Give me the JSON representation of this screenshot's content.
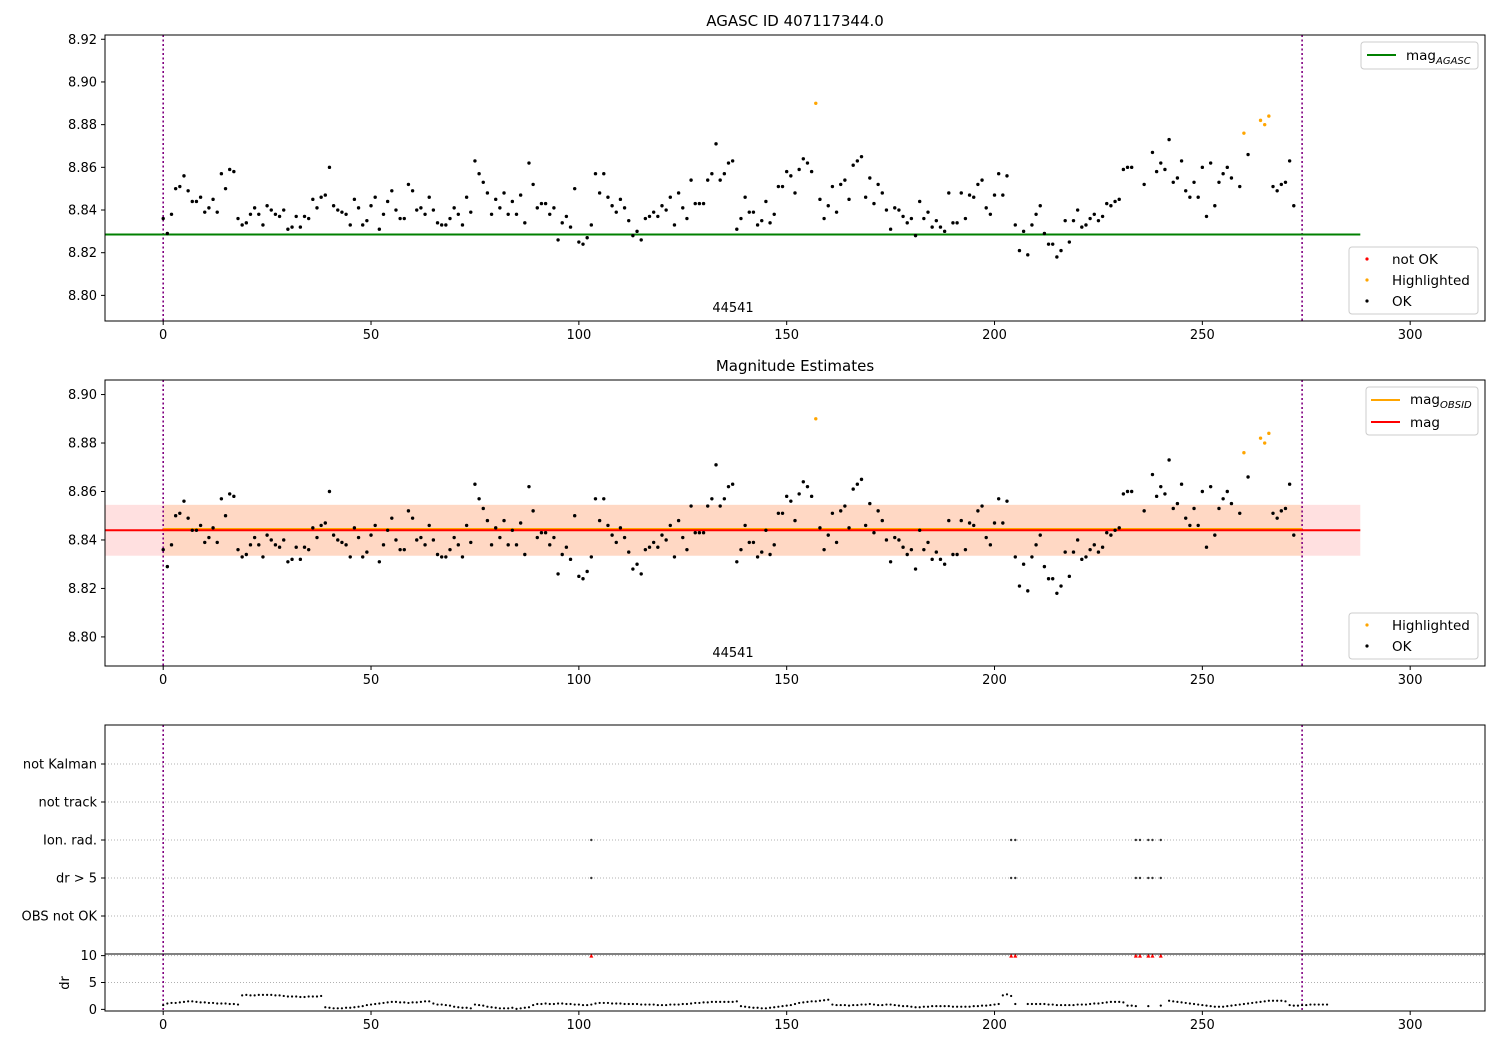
{
  "chart_data": [
    {
      "type": "scatter",
      "title": "AGASC ID 407117344.0",
      "obsid_label": "44541",
      "xlim": [
        -14,
        318
      ],
      "ylim": [
        8.788,
        8.922
      ],
      "x_ticks": [
        0,
        50,
        100,
        150,
        200,
        250,
        300
      ],
      "y_ticks": [
        8.8,
        8.82,
        8.84,
        8.86,
        8.88,
        8.9,
        8.92
      ],
      "obsid_boundaries": [
        0,
        274
      ],
      "reference_lines": [
        {
          "name": "mag_AGASC",
          "label_main": "mag",
          "label_sub": "AGASC",
          "value": 8.8285,
          "x_range": [
            -14,
            288
          ],
          "color": "#008000"
        }
      ],
      "legend_top": [
        "mag_AGASC"
      ],
      "legend_bottom": [
        {
          "label": "not OK",
          "color": "#ff0000"
        },
        {
          "label": "Highlighted",
          "color": "#ffa500"
        },
        {
          "label": "OK",
          "color": "#000000"
        }
      ],
      "highlighted_points": [
        [
          157,
          8.89
        ],
        [
          260,
          8.876
        ],
        [
          264,
          8.882
        ],
        [
          265,
          8.88
        ],
        [
          266,
          8.884
        ]
      ],
      "ok_points_start": 0,
      "ok_points": [
        8.836,
        8.829,
        8.838,
        8.85,
        8.851,
        8.856,
        8.849,
        8.844,
        8.844,
        8.846,
        8.839,
        8.841,
        8.845,
        8.839,
        8.857,
        8.85,
        8.859,
        8.858,
        8.836,
        8.833,
        8.834,
        8.838,
        8.841,
        8.838,
        8.833,
        8.842,
        8.84,
        8.838,
        8.837,
        8.84,
        8.831,
        8.832,
        8.837,
        8.832,
        8.837,
        8.836,
        8.845,
        8.841,
        8.846,
        8.847,
        8.86,
        8.842,
        8.84,
        8.839,
        8.838,
        8.833,
        8.845,
        8.841,
        8.833,
        8.835,
        8.842,
        8.846,
        8.831,
        8.838,
        8.844,
        8.849,
        8.84,
        8.836,
        8.836,
        8.852,
        8.849,
        8.84,
        8.841,
        8.838,
        8.846,
        8.84,
        8.834,
        8.833,
        8.833,
        8.836,
        8.841,
        8.838,
        8.833,
        8.846,
        8.839,
        8.863,
        8.857,
        8.853,
        8.848,
        8.838,
        8.845,
        8.841,
        8.848,
        8.838,
        8.844,
        8.838,
        8.847,
        8.834,
        8.862,
        8.852,
        8.841,
        8.843,
        8.843,
        8.838,
        8.841,
        8.826,
        8.834,
        8.837,
        8.832,
        8.85,
        8.825,
        8.824,
        8.827,
        8.833,
        8.857,
        8.848,
        8.857,
        8.846,
        8.842,
        8.839,
        8.845,
        8.841,
        8.835,
        8.828,
        8.83,
        8.826,
        8.836,
        8.837,
        8.839,
        8.837,
        8.842,
        8.84,
        8.846,
        8.833,
        8.848,
        8.841,
        8.836,
        8.854,
        8.843,
        8.843,
        8.843,
        8.854,
        8.857,
        8.871,
        8.854,
        8.857,
        8.862,
        8.863,
        8.831,
        8.836,
        8.846,
        8.839,
        8.839,
        8.833,
        8.835,
        8.844,
        8.834,
        8.838,
        8.851,
        8.851,
        8.858,
        8.856,
        8.848,
        8.859,
        8.864,
        8.862,
        8.858,
        8.89,
        8.845,
        8.836,
        8.842,
        8.851,
        8.839,
        8.852,
        8.854,
        8.845,
        8.861,
        8.863,
        8.865,
        8.846,
        8.855,
        8.843,
        8.852,
        8.848,
        8.84,
        8.831,
        8.841,
        8.84,
        8.837,
        8.834,
        8.836,
        8.828,
        8.844,
        8.836,
        8.839,
        8.832,
        8.835,
        8.832,
        8.83,
        8.848,
        8.834,
        8.834,
        8.848,
        8.836,
        8.847,
        8.846,
        8.852,
        8.854,
        8.841,
        8.838,
        8.847,
        8.857,
        8.847,
        8.856,
        null,
        8.833,
        8.821,
        8.83,
        8.819,
        8.833,
        8.838,
        8.842,
        8.829,
        8.824,
        8.824,
        8.818,
        8.821,
        8.835,
        8.825,
        8.835,
        8.84,
        8.832,
        8.833,
        8.836,
        8.838,
        8.835,
        8.837,
        8.843,
        8.842,
        8.844,
        8.845,
        8.859,
        8.86,
        8.86,
        null,
        null,
        8.852,
        null,
        8.867,
        8.858,
        8.862,
        8.859,
        8.873,
        8.853,
        8.855,
        8.863,
        8.849,
        8.846,
        8.853,
        8.846,
        8.86,
        8.837,
        8.862,
        8.842,
        8.853,
        8.857,
        8.86,
        8.855,
        null,
        8.851,
        8.851,
        8.866,
        null,
        null,
        null,
        8.852,
        8.853,
        8.851,
        8.849,
        8.852,
        8.853,
        8.863,
        8.842
      ]
    },
    {
      "type": "scatter",
      "title": "Magnitude Estimates",
      "obsid_label": "44541",
      "xlim": [
        -14,
        318
      ],
      "ylim": [
        8.788,
        8.906
      ],
      "x_ticks": [
        0,
        50,
        100,
        150,
        200,
        250,
        300
      ],
      "y_ticks": [
        8.8,
        8.82,
        8.84,
        8.86,
        8.88,
        8.9
      ],
      "obsid_boundaries": [
        0,
        274
      ],
      "reference_lines": [
        {
          "name": "mag_OBSID",
          "label_main": "mag",
          "label_sub": "OBSID",
          "value": 8.8445,
          "x_range": [
            0,
            274
          ],
          "color": "#ffa500"
        },
        {
          "name": "mag",
          "label_main": "mag",
          "label_sub": "",
          "value": 8.844,
          "x_range": [
            -14,
            288
          ],
          "color": "#ff0000"
        }
      ],
      "bands": [
        {
          "name": "mag",
          "range": [
            8.8335,
            8.8545
          ],
          "x_range": [
            -14,
            288
          ],
          "color": "#ff0000"
        },
        {
          "name": "mag_OBSID",
          "range": [
            8.8335,
            8.8545
          ],
          "x_range": [
            0,
            274
          ],
          "color": "#ffa500"
        }
      ],
      "legend_top": [
        "mag_OBSID",
        "mag"
      ],
      "legend_bottom": [
        {
          "label": "Highlighted",
          "color": "#ffa500"
        },
        {
          "label": "OK",
          "color": "#000000"
        }
      ],
      "highlighted_points": [
        [
          157,
          8.89
        ],
        [
          260,
          8.876
        ],
        [
          264,
          8.882
        ],
        [
          265,
          8.88
        ],
        [
          266,
          8.884
        ]
      ],
      "ok_points_ref": 0
    },
    {
      "type": "scatter",
      "title": "",
      "xlim": [
        -14,
        318
      ],
      "categories": [
        "OBS not OK",
        "dr > 5",
        "Ion. rad.",
        "not track",
        "not Kalman"
      ],
      "flag_points": {
        "dr > 5": [
          103,
          204,
          205,
          234,
          235,
          237,
          238,
          240
        ],
        "Ion. rad.": [
          103,
          204,
          205,
          234,
          235,
          237,
          238,
          240
        ]
      },
      "obsid_boundaries": [
        0,
        274
      ]
    },
    {
      "type": "scatter",
      "title": "",
      "ylabel": "dr",
      "xlim": [
        -14,
        318
      ],
      "ylim": [
        -0.3,
        10.3
      ],
      "x_ticks": [
        0,
        50,
        100,
        150,
        200,
        250,
        300
      ],
      "y_ticks": [
        0,
        5,
        10
      ],
      "obsid_boundaries": [
        0,
        274
      ],
      "clipped_points": [
        103,
        204,
        205,
        234,
        235,
        237,
        238,
        240
      ],
      "dr_values_start": 0,
      "dr_values": [
        0.8,
        1.1,
        1.2,
        1.2,
        1.3,
        1.4,
        1.5,
        1.5,
        1.4,
        1.3,
        1.3,
        1.2,
        1.2,
        1.1,
        1.1,
        1.1,
        1.0,
        1.0,
        0.9,
        2.6,
        2.7,
        2.6,
        2.6,
        2.7,
        2.7,
        2.7,
        2.7,
        2.6,
        2.6,
        2.5,
        2.4,
        2.4,
        2.4,
        2.3,
        2.3,
        2.4,
        2.4,
        2.4,
        2.5,
        0.4,
        0.3,
        0.2,
        0.2,
        0.2,
        0.3,
        0.3,
        0.4,
        0.5,
        0.6,
        0.8,
        0.9,
        1.0,
        1.1,
        1.2,
        1.3,
        1.4,
        1.4,
        1.3,
        1.3,
        1.2,
        1.3,
        1.3,
        1.4,
        1.5,
        1.5,
        1.1,
        0.9,
        0.9,
        0.8,
        0.7,
        0.5,
        0.4,
        0.3,
        0.3,
        0.2,
        0.9,
        0.8,
        0.7,
        0.5,
        0.4,
        0.3,
        0.2,
        0.2,
        0.2,
        0.3,
        0.1,
        0.2,
        0.3,
        0.4,
        0.8,
        1.0,
        1.0,
        1.1,
        1.0,
        1.0,
        1.1,
        1.1,
        1.0,
        1.0,
        0.9,
        0.9,
        0.8,
        0.8,
        0.9,
        1.1,
        1.2,
        1.2,
        1.2,
        1.1,
        1.1,
        1.1,
        1.0,
        1.0,
        1.0,
        1.0,
        0.9,
        0.9,
        0.9,
        0.9,
        0.8,
        0.8,
        0.8,
        0.9,
        0.9,
        0.9,
        1.0,
        1.0,
        1.1,
        1.2,
        1.2,
        1.3,
        1.3,
        1.4,
        1.4,
        1.4,
        1.4,
        1.4,
        1.4,
        1.5,
        0.6,
        0.5,
        0.4,
        0.3,
        0.3,
        0.2,
        0.2,
        0.3,
        0.4,
        0.5,
        0.6,
        0.7,
        0.8,
        1.0,
        1.2,
        1.3,
        1.4,
        1.5,
        1.5,
        1.6,
        1.7,
        1.8,
        0.9,
        0.8,
        0.8,
        0.8,
        0.7,
        0.8,
        0.8,
        0.9,
        0.9,
        1.0,
        0.9,
        0.8,
        0.8,
        0.9,
        0.9,
        0.8,
        0.7,
        0.6,
        0.6,
        0.5,
        0.4,
        0.4,
        0.5,
        0.5,
        0.6,
        0.6,
        0.6,
        0.6,
        0.6,
        0.5,
        0.5,
        0.5,
        0.5,
        0.5,
        0.6,
        0.6,
        0.7,
        0.7,
        0.8,
        0.9,
        1.0,
        2.6,
        2.8,
        2.5,
        1.0,
        null,
        null,
        1.0,
        1.0,
        1.0,
        1.0,
        1.0,
        0.9,
        0.9,
        0.8,
        0.8,
        0.8,
        0.8,
        0.8,
        0.9,
        0.9,
        0.9,
        1.0,
        1.1,
        1.1,
        1.2,
        1.3,
        1.4,
        1.4,
        1.4,
        1.3,
        0.7,
        0.7,
        0.6,
        null,
        null,
        0.6,
        null,
        null,
        0.7,
        null,
        1.6,
        1.5,
        1.4,
        1.3,
        1.2,
        1.1,
        1.0,
        0.9,
        0.8,
        0.7,
        0.6,
        0.5,
        0.5,
        0.5,
        0.6,
        0.7,
        0.8,
        0.9,
        1.0,
        1.1,
        1.2,
        1.3,
        1.4,
        1.5,
        1.6,
        1.6,
        1.6,
        1.6,
        1.5,
        0.8,
        0.7,
        0.7,
        0.8,
        0.8,
        0.9,
        0.9,
        0.9,
        0.9,
        0.9
      ]
    }
  ],
  "colors": {
    "ok": "#000000",
    "highlighted": "#ffa500",
    "not_ok": "#ff0000",
    "obsid_boundary": "#800080",
    "grid": "#b0b0b0"
  }
}
